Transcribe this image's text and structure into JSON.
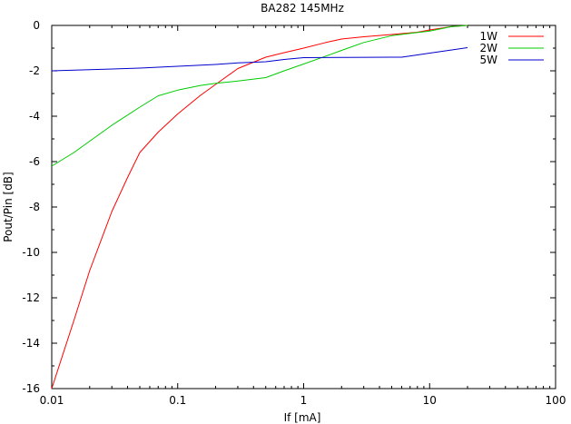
{
  "chart_data": {
    "type": "line",
    "title": "BA282 145MHz",
    "xlabel": "If [mA]",
    "ylabel": "Pout/Pin [dB]",
    "xscale": "log",
    "xlim": [
      0.01,
      100
    ],
    "ylim": [
      -16,
      0
    ],
    "x_ticks": [
      0.01,
      0.1,
      1,
      10,
      100
    ],
    "x_tick_labels": [
      "0.01",
      "0.1",
      "1",
      "10",
      "100"
    ],
    "y_ticks": [
      0,
      -2,
      -4,
      -6,
      -8,
      -10,
      -12,
      -14,
      -16
    ],
    "y_tick_labels": [
      "0",
      "-2",
      "-4",
      "-6",
      "-8",
      "-10",
      "-12",
      "-14",
      "-16"
    ],
    "grid": false,
    "legend_position": "top-right",
    "series": [
      {
        "name": "1W",
        "color": "#ff0000",
        "points": [
          [
            0.01,
            -16
          ],
          [
            0.015,
            -13
          ],
          [
            0.02,
            -10.8
          ],
          [
            0.03,
            -8.2
          ],
          [
            0.04,
            -6.7
          ],
          [
            0.05,
            -5.6
          ],
          [
            0.07,
            -4.7
          ],
          [
            0.1,
            -3.9
          ],
          [
            0.15,
            -3.1
          ],
          [
            0.2,
            -2.6
          ],
          [
            0.3,
            -1.9
          ],
          [
            0.5,
            -1.4
          ],
          [
            0.7,
            -1.2
          ],
          [
            1,
            -1.0
          ],
          [
            1.5,
            -0.75
          ],
          [
            2,
            -0.6
          ],
          [
            3,
            -0.5
          ],
          [
            5,
            -0.4
          ],
          [
            8,
            -0.3
          ],
          [
            10,
            -0.2
          ],
          [
            15,
            -0.05
          ],
          [
            20,
            0
          ]
        ]
      },
      {
        "name": "2W",
        "color": "#00cc00",
        "points": [
          [
            0.01,
            -6.2
          ],
          [
            0.015,
            -5.6
          ],
          [
            0.02,
            -5.1
          ],
          [
            0.03,
            -4.4
          ],
          [
            0.05,
            -3.6
          ],
          [
            0.07,
            -3.1
          ],
          [
            0.1,
            -2.85
          ],
          [
            0.15,
            -2.65
          ],
          [
            0.2,
            -2.55
          ],
          [
            0.3,
            -2.45
          ],
          [
            0.5,
            -2.3
          ],
          [
            0.7,
            -2.0
          ],
          [
            1,
            -1.7
          ],
          [
            1.5,
            -1.35
          ],
          [
            2,
            -1.1
          ],
          [
            3,
            -0.75
          ],
          [
            5,
            -0.45
          ],
          [
            7,
            -0.35
          ],
          [
            10,
            -0.25
          ],
          [
            15,
            -0.05
          ],
          [
            20,
            0
          ]
        ]
      },
      {
        "name": "5W",
        "color": "#0000cc",
        "points": [
          [
            0.01,
            -2.0
          ],
          [
            0.02,
            -1.95
          ],
          [
            0.05,
            -1.88
          ],
          [
            0.1,
            -1.8
          ],
          [
            0.2,
            -1.72
          ],
          [
            0.3,
            -1.65
          ],
          [
            0.5,
            -1.6
          ],
          [
            0.7,
            -1.5
          ],
          [
            1,
            -1.42
          ],
          [
            2,
            -1.41
          ],
          [
            5,
            -1.4
          ],
          [
            6,
            -1.4
          ],
          [
            8,
            -1.3
          ],
          [
            10,
            -1.22
          ],
          [
            15,
            -1.08
          ],
          [
            20,
            -0.98
          ]
        ]
      }
    ]
  }
}
